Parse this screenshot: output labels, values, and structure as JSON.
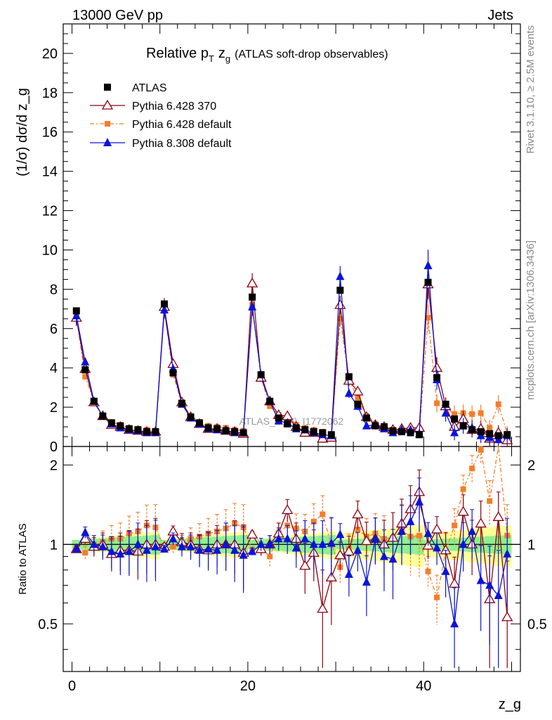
{
  "header": {
    "left": "13000 GeV pp",
    "right": "Jets"
  },
  "title": {
    "main": "Relative p",
    "sub": "T",
    "var": "z",
    "varsub": "g",
    "rest": "(ATLAS soft-drop observables)"
  },
  "side_labels": {
    "rivet": "Rivet 3.1.10, ≥ 2.5M events",
    "mcplots": "mcplots.cern.ch [arXiv:1306.3436]"
  },
  "watermark": "ATLAS_2019_I1772062",
  "chart_data": {
    "type": "line",
    "x": [
      0.5,
      1.5,
      2.5,
      3.5,
      4.5,
      5.5,
      6.5,
      7.5,
      8.5,
      9.5,
      10.5,
      11.5,
      12.5,
      13.5,
      14.5,
      15.5,
      16.5,
      17.5,
      18.5,
      19.5,
      20.5,
      21.5,
      22.5,
      23.5,
      24.5,
      25.5,
      26.5,
      27.5,
      28.5,
      29.5,
      30.5,
      31.5,
      32.5,
      33.5,
      34.5,
      35.5,
      36.5,
      37.5,
      38.5,
      39.5,
      40.5,
      41.5,
      42.5,
      43.5,
      44.5,
      45.5,
      46.5,
      47.5,
      48.5,
      49.5
    ],
    "xlabel": "z_g",
    "ylabel": "(1/σ) dσ/d z_g",
    "xlim": [
      -1,
      51
    ],
    "ylim_top": [
      0,
      21.5
    ],
    "ylim_ratio": [
      0.33,
      2.35
    ],
    "ratio_ylabel": "Ratio to ATLAS",
    "y_ticks_top": [
      "0",
      "2",
      "4",
      "6",
      "8",
      "10",
      "12",
      "14",
      "16",
      "18",
      "20"
    ],
    "y_ticks_ratio": [
      "0.5",
      "1",
      "2"
    ],
    "x_ticks": [
      "0",
      "20",
      "40"
    ],
    "legend_position": "top-left",
    "series": [
      {
        "name": "ATLAS",
        "color": "#000000",
        "marker": "square",
        "values": [
          6.9,
          3.9,
          2.3,
          1.55,
          1.2,
          1.05,
          0.9,
          0.85,
          0.75,
          0.75,
          7.25,
          3.75,
          2.2,
          1.5,
          1.2,
          0.95,
          0.9,
          0.8,
          0.75,
          0.7,
          7.6,
          3.65,
          2.3,
          1.45,
          1.15,
          0.95,
          0.85,
          0.75,
          0.7,
          0.6,
          7.95,
          3.55,
          2.15,
          1.45,
          1.05,
          1.0,
          0.8,
          0.75,
          0.7,
          0.6,
          8.35,
          3.5,
          2.15,
          1.4,
          1.05,
          0.85,
          0.75,
          0.65,
          0.55,
          0.6
        ],
        "ratio": []
      },
      {
        "name": "Pythia 6.428 370",
        "color": "#8b0010",
        "marker": "open-triangle",
        "values": [
          6.55,
          3.95,
          2.25,
          1.55,
          1.1,
          1.0,
          0.85,
          0.8,
          0.75,
          0.75,
          7.1,
          4.2,
          2.25,
          1.5,
          1.15,
          0.9,
          0.9,
          0.8,
          0.75,
          0.65,
          8.3,
          3.5,
          2.3,
          1.6,
          1.55,
          1.0,
          0.7,
          0.7,
          0.4,
          0.45,
          7.2,
          3.35,
          2.8,
          1.5,
          1.1,
          1.0,
          0.85,
          0.9,
          0.95,
          0.95,
          8.25,
          4.0,
          2.05,
          1.0,
          1.4,
          0.85,
          0.9,
          0.4,
          0.7,
          0.32
        ],
        "ratio": [
          0.96,
          1.05,
          0.98,
          1.0,
          0.92,
          0.95,
          0.95,
          0.94,
          1.0,
          1.0,
          0.98,
          1.12,
          1.02,
          1.0,
          0.96,
          0.95,
          1.0,
          1.0,
          1.0,
          0.93,
          1.09,
          0.96,
          1.0,
          1.1,
          1.35,
          1.05,
          0.83,
          0.93,
          0.57,
          0.75,
          0.91,
          0.94,
          1.3,
          1.03,
          1.05,
          1.0,
          1.06,
          1.2,
          1.36,
          1.58,
          0.99,
          1.14,
          0.95,
          0.71,
          1.33,
          1.0,
          1.2,
          0.62,
          1.27,
          0.53
        ]
      },
      {
        "name": "Pythia 6.428 default",
        "color": "#f47d2a",
        "marker": "filled-square",
        "values": [
          6.6,
          3.55,
          2.3,
          1.55,
          1.25,
          1.1,
          0.95,
          0.9,
          0.85,
          0.8,
          7.0,
          3.65,
          2.2,
          1.55,
          1.25,
          1.05,
          1.0,
          0.95,
          0.85,
          0.8,
          7.2,
          3.5,
          2.05,
          1.6,
          1.35,
          1.1,
          0.95,
          0.85,
          0.75,
          0.6,
          6.5,
          3.4,
          2.45,
          1.55,
          1.15,
          1.05,
          0.85,
          0.85,
          0.75,
          0.65,
          6.55,
          2.2,
          2.0,
          1.65,
          1.7,
          1.65,
          1.7,
          0.95,
          2.15,
          0.65
        ],
        "ratio": [
          0.96,
          0.93,
          1.0,
          1.02,
          1.05,
          1.05,
          1.1,
          1.12,
          1.18,
          1.16,
          0.97,
          0.98,
          1.0,
          1.05,
          1.07,
          1.1,
          1.12,
          1.15,
          1.2,
          1.16,
          0.95,
          0.97,
          0.9,
          1.1,
          1.18,
          1.15,
          1.12,
          1.22,
          1.3,
          1.0,
          0.82,
          0.96,
          1.14,
          1.07,
          1.1,
          1.05,
          1.06,
          1.13,
          1.07,
          1.08,
          0.79,
          0.63,
          0.94,
          1.18,
          1.62,
          1.94,
          2.28,
          1.46,
          2.7,
          1.08
        ]
      },
      {
        "name": "Pythia 8.308 default",
        "color": "#0a14d8",
        "marker": "filled-triangle",
        "values": [
          6.65,
          4.3,
          2.3,
          1.55,
          1.15,
          0.95,
          0.85,
          0.8,
          0.7,
          0.7,
          6.95,
          3.95,
          2.15,
          1.45,
          1.15,
          0.9,
          0.85,
          0.8,
          0.7,
          0.7,
          7.1,
          3.65,
          2.3,
          1.3,
          1.2,
          0.9,
          0.85,
          0.7,
          0.6,
          0.55,
          8.65,
          2.7,
          2.05,
          1.05,
          1.1,
          0.9,
          0.7,
          0.85,
          0.85,
          0.65,
          9.2,
          3.4,
          1.7,
          0.7,
          1.05,
          0.95,
          0.55,
          0.45,
          0.35,
          0.55
        ],
        "ratio": [
          0.96,
          1.11,
          1.0,
          0.98,
          0.94,
          0.92,
          0.94,
          1.0,
          0.95,
          0.98,
          0.96,
          1.05,
          0.98,
          0.98,
          0.95,
          0.96,
          0.95,
          1.0,
          0.95,
          0.91,
          0.94,
          1.0,
          1.0,
          1.05,
          1.05,
          0.97,
          1.05,
          1.0,
          1.0,
          1.01,
          1.09,
          0.77,
          0.95,
          0.72,
          1.05,
          0.9,
          0.88,
          1.12,
          1.22,
          1.45,
          1.1,
          0.97,
          0.79,
          0.5,
          1.0,
          1.12,
          0.73,
          0.7,
          0.64,
          0.92
        ]
      }
    ]
  }
}
